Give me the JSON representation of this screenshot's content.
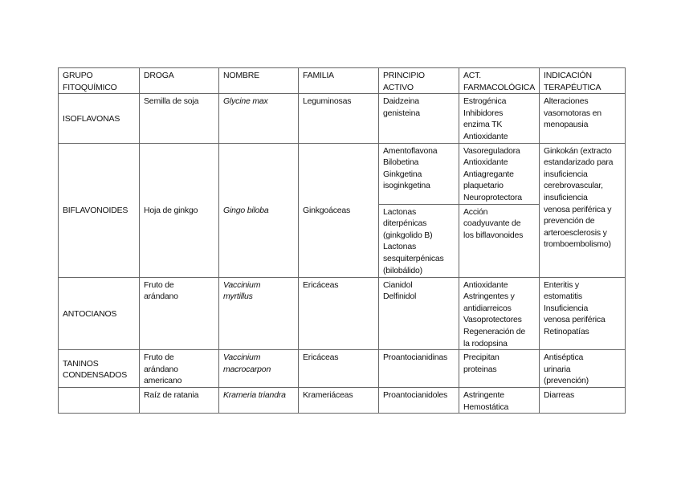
{
  "headers": [
    "GRUPO\nFITOQUÍMICO",
    "DROGA",
    "NOMBRE",
    "FAMILIA",
    "PRINCIPIO\nACTIVO",
    "ACT.\nFARMACOLÓGICA",
    "INDICACIÓN\nTERAPÉUTICA"
  ],
  "isoflavonas": {
    "grupo": "ISOFLAVONAS",
    "droga": "Semilla de soja",
    "nombre": "Glycine max",
    "familia": "Leguminosas",
    "principio": "Daidzeina\ngenisteina",
    "act": "Estrogénica\nInhibidores\nenzima TK\nAntioxidante",
    "indicacion": "Alteraciones\nvasomotoras en\nmenopausia"
  },
  "biflavonoides": {
    "grupo": "BIFLAVONOIDES",
    "droga": "Hoja de ginkgo",
    "nombre": "Gingo biloba",
    "familia": "Ginkgoáceas",
    "principio_1": "Amentoflavona\nBilobetina\nGinkgetina\nisoginkgetina",
    "act_1": "Vasoreguladora\nAntioxidante\nAntiagregante\nplaquetario\nNeuroprotectora",
    "principio_2": "Lactonas\nditerpénicas\n(ginkgolido B)\nLactonas\nsesquiterpénicas\n(bilobálido)",
    "act_2": "Acción\ncoadyuvante de\nlos biflavonoides",
    "indicacion": "Ginkokán (extracto\nestandarizado para\ninsuficiencia\ncerebrovascular,\ninsuficiencia\nvenosa periférica y\nprevención de\narteroesclerosis y\ntromboembolismo)"
  },
  "antocianos": {
    "grupo": "ANTOCIANOS",
    "droga": "Fruto de\narándano",
    "nombre": "Vaccinium\nmyrtillus",
    "familia": "Ericáceas",
    "principio": "Cianidol\nDelfinidol",
    "act": "Antioxidante\nAstringentes y\nantidiarreicos\nVasoprotectores\nRegeneración de\nla rodopsina",
    "indicacion": "Enteritis y\nestomatitis\nInsuficiencia\nvenosa periférica\nRetinopatías"
  },
  "taninos": {
    "grupo": "TANINOS\nCONDENSADOS",
    "rows": [
      {
        "droga": "Fruto de\narándano\namericano",
        "nombre": "Vaccinium\nmacrocarpon",
        "familia": "Ericáceas",
        "principio": "Proantocianidinas",
        "act": "Precipitan\nproteinas",
        "indicacion": "Antiséptica\nurinaria\n(prevención)"
      },
      {
        "droga": "Raíz de ratania",
        "nombre": "Krameria triandra",
        "familia": "Krameriáceas",
        "principio": "Proantocianidoles",
        "act": "Astringente\nHemostática",
        "indicacion": "Diarreas"
      }
    ]
  }
}
